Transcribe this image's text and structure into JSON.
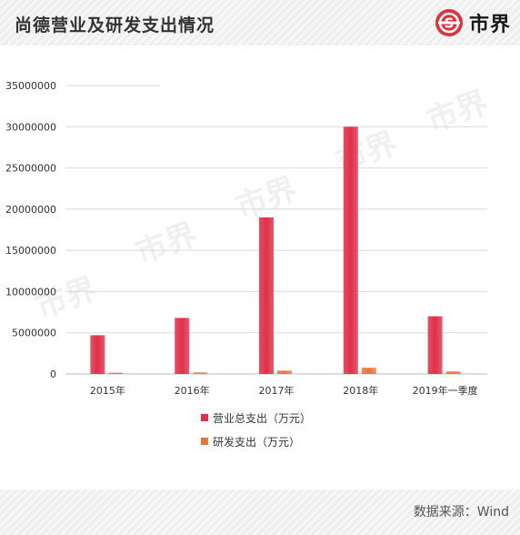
{
  "header": {
    "title": "尚德营业及研发支出情况",
    "brand_name": "市界"
  },
  "watermark": "市界",
  "footer": {
    "source": "数据来源：Wind"
  },
  "colors": {
    "series_total": "#e0304a",
    "series_rd": "#e8763a",
    "grid": "#d9d9d9"
  },
  "chart_data": {
    "type": "bar",
    "title": "",
    "xlabel": "",
    "ylabel": "",
    "categories": [
      "2015年",
      "2016年",
      "2017年",
      "2018年",
      "2019年一季度"
    ],
    "series": [
      {
        "name": "营业总支出（万元）",
        "values": [
          4700000,
          6800000,
          19000000,
          30000000,
          7000000
        ]
      },
      {
        "name": "研发支出（万元）",
        "values": [
          150000,
          180000,
          400000,
          750000,
          300000
        ]
      }
    ],
    "ylim": [
      0,
      35000000
    ],
    "yticks": [
      "0",
      "5000000",
      "10000000",
      "15000000",
      "20000000",
      "25000000",
      "30000000",
      "35000000"
    ],
    "grid": true,
    "legend_position": "bottom-center"
  }
}
